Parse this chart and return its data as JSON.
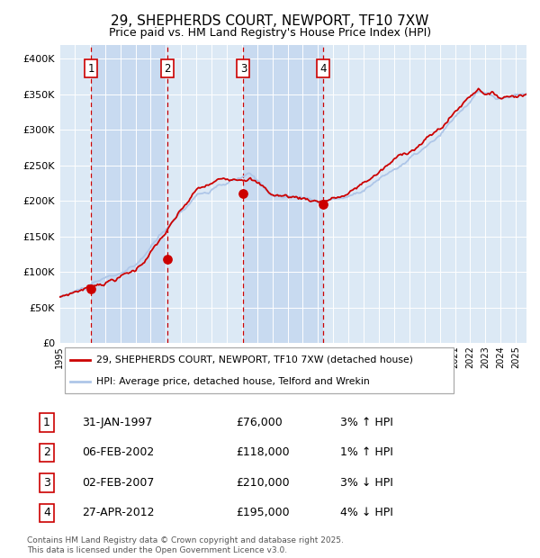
{
  "title": "29, SHEPHERDS COURT, NEWPORT, TF10 7XW",
  "subtitle": "Price paid vs. HM Land Registry's House Price Index (HPI)",
  "legend_line1": "29, SHEPHERDS COURT, NEWPORT, TF10 7XW (detached house)",
  "legend_line2": "HPI: Average price, detached house, Telford and Wrekin",
  "footer": "Contains HM Land Registry data © Crown copyright and database right 2025.\nThis data is licensed under the Open Government Licence v3.0.",
  "transactions": [
    {
      "num": 1,
      "date": "31-JAN-1997",
      "year": 1997.08,
      "price": 76000,
      "hpi_pct": "3%",
      "hpi_dir": "↑"
    },
    {
      "num": 2,
      "date": "06-FEB-2002",
      "year": 2002.1,
      "price": 118000,
      "hpi_pct": "1%",
      "hpi_dir": "↑"
    },
    {
      "num": 3,
      "date": "02-FEB-2007",
      "year": 2007.09,
      "price": 210000,
      "hpi_pct": "3%",
      "hpi_dir": "↓"
    },
    {
      "num": 4,
      "date": "27-APR-2012",
      "year": 2012.32,
      "price": 195000,
      "hpi_pct": "4%",
      "hpi_dir": "↓"
    }
  ],
  "hpi_color": "#aec6e8",
  "price_color": "#cc0000",
  "dot_color": "#cc0000",
  "vline_color": "#cc0000",
  "bg_color": "#ffffff",
  "chart_bg": "#dce9f5",
  "band_colors": [
    "#dce9f5",
    "#c8daf0"
  ],
  "ylim": [
    0,
    420000
  ],
  "yticks": [
    0,
    50000,
    100000,
    150000,
    200000,
    250000,
    300000,
    350000,
    400000
  ],
  "xlim_start": 1995.0,
  "xlim_end": 2025.7
}
